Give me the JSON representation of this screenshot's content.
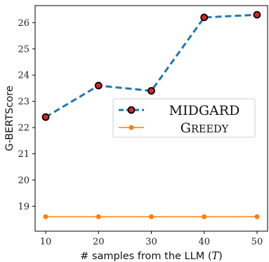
{
  "chart_data": {
    "type": "line",
    "x": [
      10,
      20,
      30,
      40,
      50
    ],
    "series": [
      {
        "name": "MIDGARD",
        "values": [
          22.4,
          23.6,
          23.4,
          26.2,
          26.3
        ],
        "color": "#1f77b4",
        "marker_fill": "#d62728",
        "marker_edge": "#000000",
        "linestyle": "dashed"
      },
      {
        "name": "Greedy",
        "values": [
          18.6,
          18.6,
          18.6,
          18.6,
          18.6
        ],
        "color": "#ff7f0e",
        "linestyle": "solid"
      }
    ],
    "xlabel": "# samples from the LLM (T)",
    "ylabel": "G-BERTScore",
    "xticks": [
      10,
      20,
      30,
      40,
      50
    ],
    "yticks": [
      19,
      20,
      21,
      22,
      23,
      24,
      25,
      26
    ],
    "xlim": [
      8,
      52
    ],
    "ylim": [
      18.05,
      26.65
    ],
    "grid": false,
    "legend_position": "center-right"
  }
}
